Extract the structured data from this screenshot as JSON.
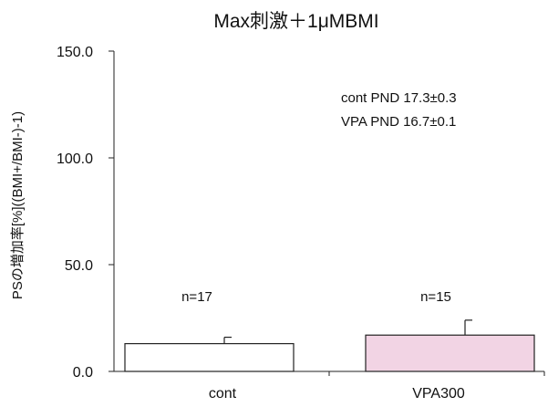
{
  "chart_data": {
    "type": "bar",
    "title": "Max刺激＋1μMBMI",
    "ylabel": "PSの増加率[%]((BMI+/BMI-)-1)",
    "xlabel": "",
    "ylim": [
      0,
      150
    ],
    "yticks": [
      "0.0",
      "50.0",
      "100.0",
      "150.0"
    ],
    "ytick_values": [
      0,
      50,
      100,
      150
    ],
    "categories": [
      "cont",
      "VPA300"
    ],
    "values": [
      13.0,
      17.0
    ],
    "errors": [
      3.0,
      7.0
    ],
    "sample_labels": [
      "n=17",
      "n=15"
    ],
    "bar_colors": [
      "#ffffff",
      "#f2d4e4"
    ],
    "annotations": [
      "cont PND 17.3±0.3",
      "VPA PND 16.7±0.1"
    ],
    "grid": false,
    "legend": "none"
  }
}
